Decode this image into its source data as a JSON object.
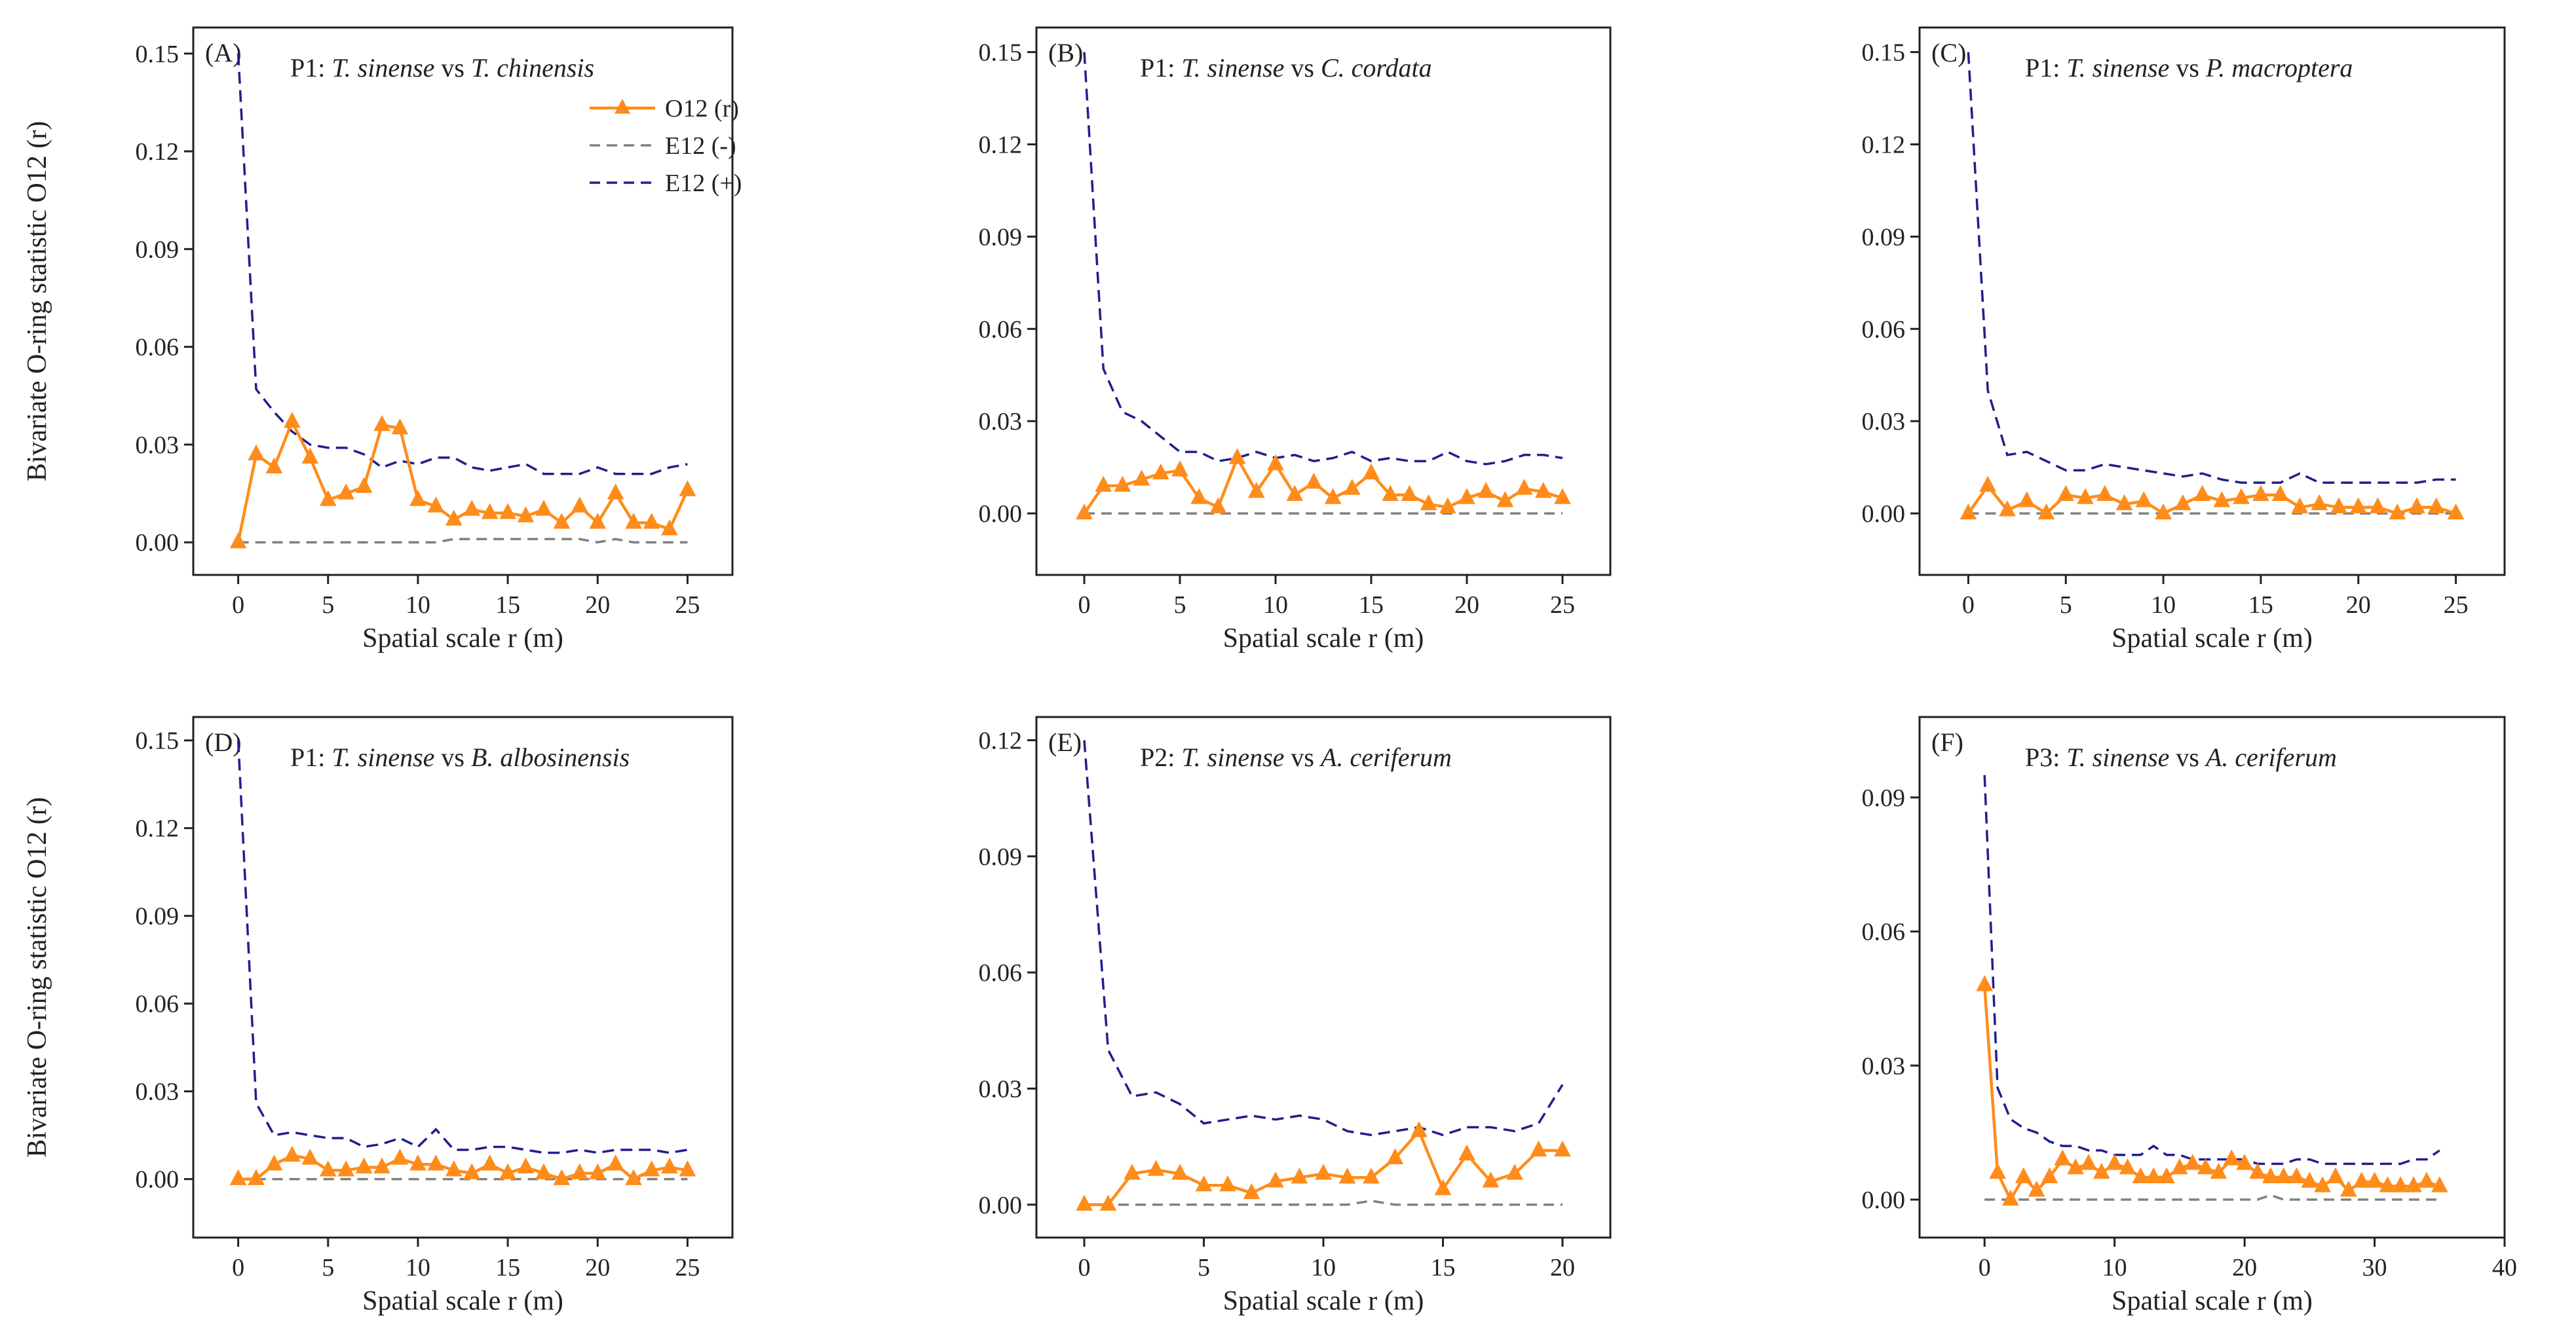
{
  "figure": {
    "y_axis_label": "Bivariate O-ring statistic O12 (r)",
    "colors": {
      "observed": "#ff8c1a",
      "lower": "#808080",
      "upper": "#1f1f8f",
      "axes": "#222222"
    },
    "legend": {
      "observed": "O12 (r)",
      "lower": "E12 (-)",
      "upper": "E12 (+)"
    }
  },
  "chart_data": [
    {
      "type": "line",
      "panel": "(A)",
      "title_prefix": "P1: ",
      "title_species1": "T. sinense",
      "title_vs": " vs ",
      "title_species2": "T. chinensis",
      "xlabel": "Spatial scale r (m)",
      "ylabel": "Bivariate O-ring statistic O12 (r)",
      "xlim": [
        -2.5,
        27.5
      ],
      "ylim": [
        -0.01,
        0.158
      ],
      "xticks": [
        0,
        5,
        10,
        15,
        20,
        25
      ],
      "xtick_labels": [
        "0",
        "5",
        "10",
        "15",
        "20",
        "25"
      ],
      "yticks": [
        0.0,
        0.03,
        0.06,
        0.09,
        0.12,
        0.15
      ],
      "ytick_labels": [
        "0.00",
        "0.03",
        "0.06",
        "0.09",
        "0.12",
        "0.15"
      ],
      "legend_shown": true,
      "x": [
        0,
        1,
        2,
        3,
        4,
        5,
        6,
        7,
        8,
        9,
        10,
        11,
        12,
        13,
        14,
        15,
        16,
        17,
        18,
        19,
        20,
        21,
        22,
        23,
        24,
        25
      ],
      "series": [
        {
          "name": "O12 (r)",
          "values": [
            0.0,
            0.027,
            0.023,
            0.037,
            0.026,
            0.013,
            0.015,
            0.017,
            0.036,
            0.035,
            0.013,
            0.011,
            0.007,
            0.01,
            0.009,
            0.009,
            0.008,
            0.01,
            0.006,
            0.011,
            0.006,
            0.015,
            0.006,
            0.006,
            0.004,
            0.016
          ]
        },
        {
          "name": "E12 (-)",
          "values": [
            0.0,
            0.0,
            0.0,
            0.0,
            0.0,
            0.0,
            0.0,
            0.0,
            0.0,
            0.0,
            0.0,
            0.0,
            0.001,
            0.001,
            0.001,
            0.001,
            0.001,
            0.001,
            0.001,
            0.001,
            0.0,
            0.001,
            0.0,
            0.0,
            0.0,
            0.0
          ]
        },
        {
          "name": "E12 (+)",
          "values": [
            0.15,
            0.047,
            0.04,
            0.034,
            0.03,
            0.029,
            0.029,
            0.027,
            0.023,
            0.025,
            0.024,
            0.026,
            0.026,
            0.023,
            0.022,
            0.023,
            0.024,
            0.021,
            0.021,
            0.021,
            0.023,
            0.021,
            0.021,
            0.021,
            0.023,
            0.024
          ]
        }
      ]
    },
    {
      "type": "line",
      "panel": "(B)",
      "title_prefix": "P1: ",
      "title_species1": "T. sinense",
      "title_vs": " vs ",
      "title_species2": "C. cordata",
      "xlabel": "Spatial scale r (m)",
      "ylabel": "",
      "xlim": [
        -2.5,
        27.5
      ],
      "ylim": [
        -0.02,
        0.158
      ],
      "xticks": [
        0,
        5,
        10,
        15,
        20,
        25
      ],
      "xtick_labels": [
        "0",
        "5",
        "10",
        "15",
        "20",
        "25"
      ],
      "yticks": [
        0.0,
        0.03,
        0.06,
        0.09,
        0.12,
        0.15
      ],
      "ytick_labels": [
        "0.00",
        "0.03",
        "0.06",
        "0.09",
        "0.12",
        "0.15"
      ],
      "legend_shown": false,
      "x": [
        0,
        1,
        2,
        3,
        4,
        5,
        6,
        7,
        8,
        9,
        10,
        11,
        12,
        13,
        14,
        15,
        16,
        17,
        18,
        19,
        20,
        21,
        22,
        23,
        24,
        25
      ],
      "series": [
        {
          "name": "O12 (r)",
          "values": [
            0.0,
            0.009,
            0.009,
            0.011,
            0.013,
            0.014,
            0.005,
            0.002,
            0.018,
            0.007,
            0.016,
            0.006,
            0.01,
            0.005,
            0.008,
            0.013,
            0.006,
            0.006,
            0.003,
            0.002,
            0.005,
            0.007,
            0.004,
            0.008,
            0.007,
            0.005
          ]
        },
        {
          "name": "E12 (-)",
          "values": [
            0.0,
            0.0,
            0.0,
            0.0,
            0.0,
            0.0,
            0.0,
            0.0,
            0.0,
            0.0,
            0.0,
            0.0,
            0.0,
            0.0,
            0.0,
            0.0,
            0.0,
            0.0,
            0.0,
            0.0,
            0.0,
            0.0,
            0.0,
            0.0,
            0.0,
            0.0
          ]
        },
        {
          "name": "E12 (+)",
          "values": [
            0.15,
            0.047,
            0.033,
            0.03,
            0.025,
            0.02,
            0.02,
            0.017,
            0.018,
            0.02,
            0.018,
            0.019,
            0.017,
            0.018,
            0.02,
            0.017,
            0.018,
            0.017,
            0.017,
            0.02,
            0.017,
            0.016,
            0.017,
            0.019,
            0.019,
            0.018
          ]
        }
      ]
    },
    {
      "type": "line",
      "panel": "(C)",
      "title_prefix": "P1: ",
      "title_species1": "T. sinense",
      "title_vs": " vs ",
      "title_species2": "P. macroptera",
      "xlabel": "Spatial scale r (m)",
      "ylabel": "",
      "xlim": [
        -2.5,
        27.5
      ],
      "ylim": [
        -0.02,
        0.158
      ],
      "xticks": [
        0,
        5,
        10,
        15,
        20,
        25
      ],
      "xtick_labels": [
        "0",
        "5",
        "10",
        "15",
        "20",
        "25"
      ],
      "yticks": [
        0.0,
        0.03,
        0.06,
        0.09,
        0.12,
        0.15
      ],
      "ytick_labels": [
        "0.00",
        "0.03",
        "0.06",
        "0.09",
        "0.12",
        "0.15"
      ],
      "legend_shown": false,
      "x": [
        0,
        1,
        2,
        3,
        4,
        5,
        6,
        7,
        8,
        9,
        10,
        11,
        12,
        13,
        14,
        15,
        16,
        17,
        18,
        19,
        20,
        21,
        22,
        23,
        24,
        25
      ],
      "series": [
        {
          "name": "O12 (r)",
          "values": [
            0.0,
            0.009,
            0.001,
            0.004,
            0.0,
            0.006,
            0.005,
            0.006,
            0.003,
            0.004,
            0.0,
            0.003,
            0.006,
            0.004,
            0.005,
            0.006,
            0.006,
            0.002,
            0.003,
            0.002,
            0.002,
            0.002,
            0.0,
            0.002,
            0.002,
            0.0
          ]
        },
        {
          "name": "E12 (-)",
          "values": [
            0.0,
            0.0,
            0.0,
            0.0,
            0.0,
            0.0,
            0.0,
            0.0,
            0.0,
            0.0,
            0.0,
            0.0,
            0.0,
            0.0,
            0.0,
            0.0,
            0.0,
            0.0,
            0.0,
            0.0,
            0.0,
            0.0,
            0.0,
            0.0,
            0.0,
            0.0
          ]
        },
        {
          "name": "E12 (+)",
          "values": [
            0.15,
            0.04,
            0.019,
            0.02,
            0.017,
            0.014,
            0.014,
            0.016,
            0.015,
            0.014,
            0.013,
            0.012,
            0.013,
            0.011,
            0.01,
            0.01,
            0.01,
            0.013,
            0.01,
            0.01,
            0.01,
            0.01,
            0.01,
            0.01,
            0.011,
            0.011
          ]
        }
      ]
    },
    {
      "type": "line",
      "panel": "(D)",
      "title_prefix": "P1: ",
      "title_species1": "T. sinense",
      "title_vs": " vs ",
      "title_species2": "B. albosinensis",
      "xlabel": "Spatial scale r (m)",
      "ylabel": "Bivariate O-ring statistic O12 (r)",
      "xlim": [
        -2.5,
        27.5
      ],
      "ylim": [
        -0.02,
        0.158
      ],
      "xticks": [
        0,
        5,
        10,
        15,
        20,
        25
      ],
      "xtick_labels": [
        "0",
        "5",
        "10",
        "15",
        "20",
        "25"
      ],
      "yticks": [
        0.0,
        0.03,
        0.06,
        0.09,
        0.12,
        0.15
      ],
      "ytick_labels": [
        "0.00",
        "0.03",
        "0.06",
        "0.09",
        "0.12",
        "0.15"
      ],
      "legend_shown": false,
      "x": [
        0,
        1,
        2,
        3,
        4,
        5,
        6,
        7,
        8,
        9,
        10,
        11,
        12,
        13,
        14,
        15,
        16,
        17,
        18,
        19,
        20,
        21,
        22,
        23,
        24,
        25
      ],
      "series": [
        {
          "name": "O12 (r)",
          "values": [
            0.0,
            0.0,
            0.005,
            0.008,
            0.007,
            0.003,
            0.003,
            0.004,
            0.004,
            0.007,
            0.005,
            0.005,
            0.003,
            0.002,
            0.005,
            0.002,
            0.004,
            0.002,
            0.0,
            0.002,
            0.002,
            0.005,
            0.0,
            0.003,
            0.004,
            0.003
          ]
        },
        {
          "name": "E12 (-)",
          "values": [
            0.0,
            0.0,
            0.0,
            0.0,
            0.0,
            0.0,
            0.0,
            0.0,
            0.0,
            0.0,
            0.0,
            0.0,
            0.0,
            0.0,
            0.0,
            0.0,
            0.0,
            0.0,
            0.0,
            0.0,
            0.0,
            0.0,
            0.0,
            0.0,
            0.0,
            0.0
          ]
        },
        {
          "name": "E12 (+)",
          "values": [
            0.15,
            0.026,
            0.015,
            0.016,
            0.015,
            0.014,
            0.014,
            0.011,
            0.012,
            0.014,
            0.011,
            0.017,
            0.01,
            0.01,
            0.011,
            0.011,
            0.01,
            0.009,
            0.009,
            0.01,
            0.009,
            0.01,
            0.01,
            0.01,
            0.009,
            0.01
          ]
        }
      ]
    },
    {
      "type": "line",
      "panel": "(E)",
      "title_prefix": "P2: ",
      "title_species1": "T. sinense",
      "title_vs": " vs ",
      "title_species2": "A. ceriferum",
      "xlabel": "Spatial scale r (m)",
      "ylabel": "",
      "xlim": [
        -2.0,
        22.0
      ],
      "ylim": [
        -0.0085,
        0.126
      ],
      "xticks": [
        0,
        5,
        10,
        15,
        20
      ],
      "xtick_labels": [
        "0",
        "5",
        "10",
        "15",
        "20"
      ],
      "yticks": [
        0.0,
        0.03,
        0.06,
        0.09,
        0.12
      ],
      "ytick_labels": [
        "0.00",
        "0.03",
        "0.06",
        "0.09",
        "0.12"
      ],
      "legend_shown": false,
      "x": [
        0,
        1,
        2,
        3,
        4,
        5,
        6,
        7,
        8,
        9,
        10,
        11,
        12,
        13,
        14,
        15,
        16,
        17,
        18,
        19,
        20
      ],
      "series": [
        {
          "name": "O12 (r)",
          "values": [
            0.0,
            0.0,
            0.008,
            0.009,
            0.008,
            0.005,
            0.005,
            0.003,
            0.006,
            0.007,
            0.008,
            0.007,
            0.007,
            0.012,
            0.019,
            0.004,
            0.013,
            0.006,
            0.008,
            0.014,
            0.014
          ]
        },
        {
          "name": "E12 (-)",
          "values": [
            0.0,
            0.0,
            0.0,
            0.0,
            0.0,
            0.0,
            0.0,
            0.0,
            0.0,
            0.0,
            0.0,
            0.0,
            0.001,
            0.0,
            0.0,
            0.0,
            0.0,
            0.0,
            0.0,
            0.0,
            0.0
          ]
        },
        {
          "name": "E12 (+)",
          "values": [
            0.12,
            0.04,
            0.028,
            0.029,
            0.026,
            0.021,
            0.022,
            0.023,
            0.022,
            0.023,
            0.022,
            0.019,
            0.018,
            0.019,
            0.02,
            0.018,
            0.02,
            0.02,
            0.019,
            0.021,
            0.031
          ]
        }
      ]
    },
    {
      "type": "line",
      "panel": "(F)",
      "title_prefix": "P3: ",
      "title_species1": "T. sinense",
      "title_vs": " vs ",
      "title_species2": "A. ceriferum",
      "xlabel": "Spatial scale r (m)",
      "ylabel": "",
      "xlim": [
        -5.0,
        40.0
      ],
      "ylim": [
        -0.0085,
        0.108
      ],
      "xticks": [
        0,
        10,
        20,
        30,
        40
      ],
      "xtick_labels": [
        "0",
        "10",
        "20",
        "30",
        "40"
      ],
      "yticks": [
        0.0,
        0.03,
        0.06,
        0.09
      ],
      "ytick_labels": [
        "0.00",
        "0.03",
        "0.06",
        "0.09"
      ],
      "legend_shown": false,
      "x": [
        0,
        1,
        2,
        3,
        4,
        5,
        6,
        7,
        8,
        9,
        10,
        11,
        12,
        13,
        14,
        15,
        16,
        17,
        18,
        19,
        20,
        21,
        22,
        23,
        24,
        25,
        26,
        27,
        28,
        29,
        30,
        31,
        32,
        33,
        34,
        35
      ],
      "series": [
        {
          "name": "O12 (r)",
          "values": [
            0.048,
            0.006,
            0.0,
            0.005,
            0.002,
            0.005,
            0.009,
            0.007,
            0.008,
            0.006,
            0.008,
            0.007,
            0.005,
            0.005,
            0.005,
            0.007,
            0.008,
            0.007,
            0.006,
            0.009,
            0.008,
            0.006,
            0.005,
            0.005,
            0.005,
            0.004,
            0.003,
            0.005,
            0.002,
            0.004,
            0.004,
            0.003,
            0.003,
            0.003,
            0.004,
            0.003
          ]
        },
        {
          "name": "E12 (-)",
          "values": [
            0.0,
            0.0,
            0.0,
            0.0,
            0.0,
            0.0,
            0.0,
            0.0,
            0.0,
            0.0,
            0.0,
            0.0,
            0.0,
            0.0,
            0.0,
            0.0,
            0.0,
            0.0,
            0.0,
            0.0,
            0.0,
            0.0,
            0.001,
            0.0,
            0.0,
            0.0,
            0.0,
            0.0,
            0.0,
            0.0,
            0.0,
            0.0,
            0.0,
            0.0,
            0.0,
            0.0
          ]
        },
        {
          "name": "E12 (+)",
          "values": [
            0.095,
            0.025,
            0.018,
            0.016,
            0.015,
            0.013,
            0.012,
            0.012,
            0.011,
            0.011,
            0.01,
            0.01,
            0.01,
            0.012,
            0.01,
            0.01,
            0.009,
            0.009,
            0.009,
            0.009,
            0.009,
            0.008,
            0.008,
            0.008,
            0.009,
            0.009,
            0.008,
            0.008,
            0.008,
            0.008,
            0.008,
            0.008,
            0.008,
            0.009,
            0.009,
            0.011
          ]
        }
      ]
    }
  ]
}
